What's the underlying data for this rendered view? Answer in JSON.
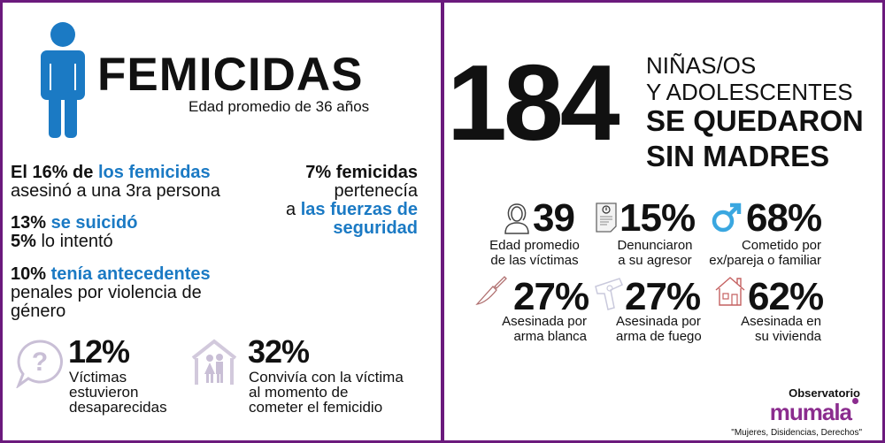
{
  "left": {
    "title": "FEMICIDAS",
    "subtitle": "Edad promedio de 36 años",
    "stat1": {
      "a": "El 16% de ",
      "b": "los femicidas",
      "c": "asesinó a una 3ra persona"
    },
    "stat2": {
      "a": "13% ",
      "b": "se suicidó",
      "c": "5%",
      "d": " lo intentó"
    },
    "stat3": {
      "a": "10% ",
      "b": "tenía antecedentes",
      "c": "penales por violencia de",
      "d": "género"
    },
    "stat4": {
      "a": "7% femicidas",
      "b": "pertenecía",
      "c": "a ",
      "d": "las fuerzas de",
      "e": "seguridad"
    },
    "stat5": {
      "value": "12%",
      "l1": "Víctimas",
      "l2": "estuvieron",
      "l3": "desaparecidas"
    },
    "stat6": {
      "value": "32%",
      "l1": "Convivía con la víctima",
      "l2": "al momento de",
      "l3": "cometer el femicidio"
    }
  },
  "right": {
    "number": "184",
    "h1": "NIÑAS/OS",
    "h2": "Y ADOLESCENTES",
    "h3": "SE QUEDARON",
    "h4": "SIN MADRES",
    "stats": [
      {
        "value": "39",
        "l1": "Edad promedio",
        "l2": "de las víctimas",
        "icon": "woman-icon"
      },
      {
        "value": "15%",
        "l1": "Denunciaron",
        "l2": "a su agresor",
        "icon": "document-icon"
      },
      {
        "value": "68%",
        "l1": "Cometido por",
        "l2": "ex/pareja o familiar",
        "icon": "male-icon"
      },
      {
        "value": "27%",
        "l1": "Asesinada por",
        "l2": "arma blanca",
        "icon": "knife-icon"
      },
      {
        "value": "27%",
        "l1": "Asesinada por",
        "l2": "arma de fuego",
        "icon": "gun-icon"
      },
      {
        "value": "62%",
        "l1": "Asesinada en",
        "l2": "su vivienda",
        "icon": "house-icon"
      }
    ],
    "footer": {
      "observatorio": "Observatorio",
      "logo": "mumala",
      "tagline": "\"Mujeres, Disidencias, Derechos\""
    }
  },
  "colors": {
    "frame": "#6b1a7d",
    "blue": "#1b7ac4",
    "icon_light": "#c9bfd6"
  }
}
